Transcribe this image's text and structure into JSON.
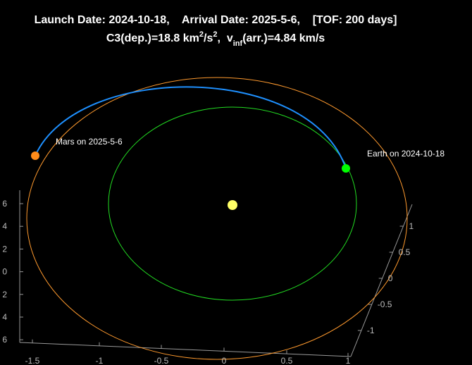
{
  "title": {
    "line1": "Launch Date: 2024-10-18,    Arrival Date: 2025-5-6,    [TOF: 200 days]",
    "line2": {
      "part1": "C3(dep.)=18.8 km",
      "sup1": "2",
      "part2": "/s",
      "sup2": "2",
      "part3": ",  v",
      "sub1": "inf",
      "part4": "(arr.)=4.84 km/s"
    }
  },
  "annotations": {
    "mars": "Mars on 2025-5-6",
    "earth": "Earth on 2024-10-18"
  },
  "axes": {
    "x_ticks": [
      "-1.5",
      "-1",
      "-0.5",
      "0",
      "0.5",
      "1"
    ],
    "left_ticks": [
      "6",
      "4",
      "2",
      "0",
      "2",
      "4",
      "6"
    ],
    "right_ticks": [
      "1",
      "0.5",
      "0",
      "-0.5",
      "-1"
    ]
  }
}
